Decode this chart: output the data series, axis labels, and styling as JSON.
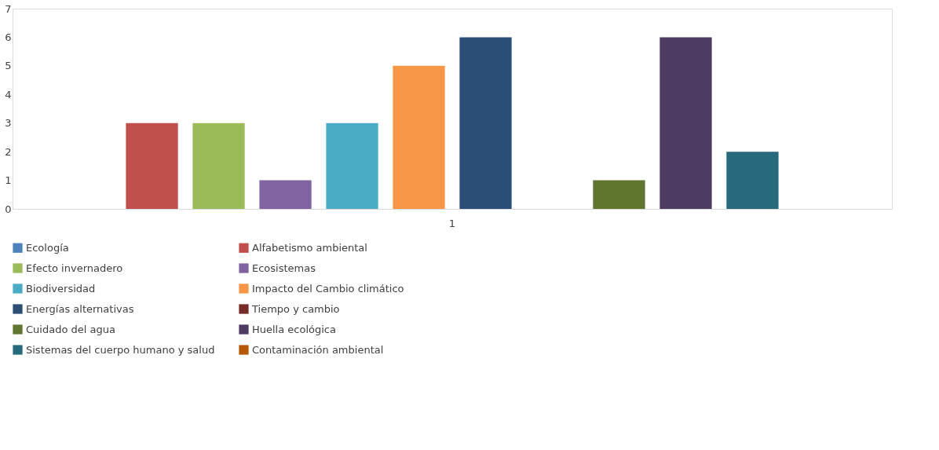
{
  "chart_data": {
    "type": "bar",
    "categories": [
      "1"
    ],
    "series": [
      {
        "name": "Ecología",
        "color": "#4f81bd",
        "values": [
          0
        ]
      },
      {
        "name": "Alfabetismo ambiental",
        "color": "#c0504d",
        "values": [
          3
        ]
      },
      {
        "name": "Efecto invernadero",
        "color": "#9bbb59",
        "values": [
          3
        ]
      },
      {
        "name": "Ecosistemas",
        "color": "#8064a2",
        "values": [
          1
        ]
      },
      {
        "name": "Biodiversidad",
        "color": "#4bacc6",
        "values": [
          3
        ]
      },
      {
        "name": "Impacto del Cambio climático",
        "color": "#f79646",
        "values": [
          5
        ]
      },
      {
        "name": "Energías alternativas",
        "color": "#2c4d75",
        "values": [
          6
        ]
      },
      {
        "name": "Tiempo y cambio",
        "color": "#772c2a",
        "values": [
          0
        ]
      },
      {
        "name": "Cuidado del agua",
        "color": "#5f7530",
        "values": [
          1
        ]
      },
      {
        "name": "Huella ecológica",
        "color": "#4d3b62",
        "values": [
          6
        ]
      },
      {
        "name": "Sistemas del cuerpo humano y salud",
        "color": "#276a7c",
        "values": [
          2
        ]
      },
      {
        "name": "Contaminación ambiental",
        "color": "#b65708",
        "values": [
          0
        ]
      }
    ],
    "ylim": [
      0,
      7
    ],
    "yticks": [
      0,
      1,
      2,
      3,
      4,
      5,
      6,
      7
    ],
    "grid": false,
    "legend": "bottom"
  }
}
